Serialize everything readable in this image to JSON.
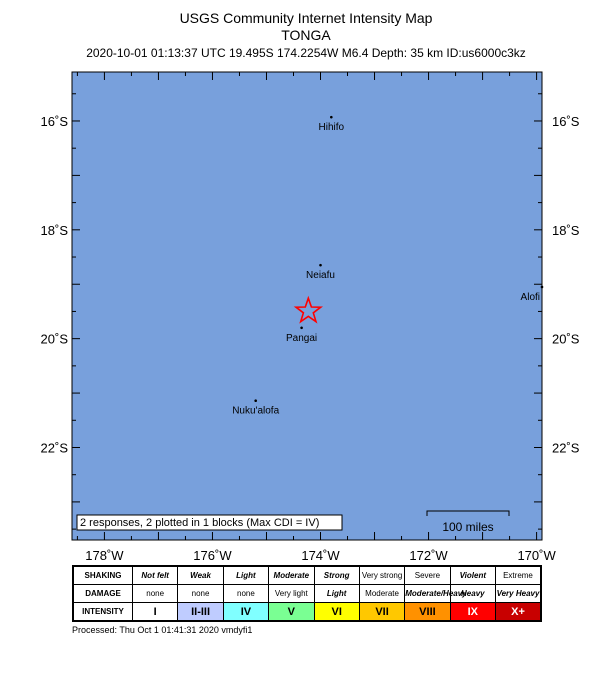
{
  "header": {
    "title": "USGS Community Internet Intensity Map",
    "region": "TONGA",
    "event_info": "2020-10-01 01:13:37 UTC 19.495S 174.2254W M6.4 Depth: 35 km ID:us6000c3kz"
  },
  "map": {
    "lon_range": [
      -178.6,
      -169.9
    ],
    "lat_range": [
      -23.7,
      -15.1
    ],
    "longitude_ticks": [
      {
        "value": -178,
        "label": "178˚W"
      },
      {
        "value": -176,
        "label": "176˚W"
      },
      {
        "value": -174,
        "label": "174˚W"
      },
      {
        "value": -172,
        "label": "172˚W"
      },
      {
        "value": -170,
        "label": "170˚W"
      }
    ],
    "latitude_ticks": [
      {
        "value": -16,
        "label": "16˚S"
      },
      {
        "value": -18,
        "label": "18˚S"
      },
      {
        "value": -20,
        "label": "20˚S"
      },
      {
        "value": -22,
        "label": "22˚S"
      }
    ],
    "places": [
      {
        "name": "Hihifo",
        "lon": -173.8,
        "lat": -15.93
      },
      {
        "name": "Neiafu",
        "lon": -174.0,
        "lat": -18.65
      },
      {
        "name": "Pangai",
        "lon": -174.35,
        "lat": -19.8
      },
      {
        "name": "Nuku'alofa",
        "lon": -175.2,
        "lat": -21.14
      },
      {
        "name": "Alofi",
        "lon": -169.9,
        "lat": -19.05
      }
    ],
    "epicenter": {
      "lon": -174.2254,
      "lat": -19.495,
      "color": "#ff0000"
    },
    "ocean_color": "#78a0dc",
    "responses_note": "2 responses, 2 plotted in 1 blocks (Max CDI = IV)",
    "scale_bar_label": "100 miles"
  },
  "legend": {
    "row_labels": {
      "shaking": "SHAKING",
      "damage": "DAMAGE",
      "intensity": "INTENSITY"
    },
    "shaking": [
      "Not felt",
      "Weak",
      "Light",
      "Moderate",
      "Strong",
      "Very strong",
      "Severe",
      "Violent",
      "Extreme"
    ],
    "damage": [
      "none",
      "none",
      "none",
      "Very light",
      "Light",
      "Moderate",
      "Moderate/Heavy",
      "Heavy",
      "Very Heavy"
    ],
    "intensity": [
      "I",
      "II-III",
      "IV",
      "V",
      "VI",
      "VII",
      "VIII",
      "IX",
      "X+"
    ],
    "intensity_colors": [
      "#ffffff",
      "#bfccff",
      "#80ffff",
      "#7aff93",
      "#ffff00",
      "#ffc800",
      "#ff9100",
      "#ff0000",
      "#c80000"
    ]
  },
  "footer": {
    "processed": "Processed: Thu Oct  1 01:41:31 2020 vmdyfi1"
  }
}
